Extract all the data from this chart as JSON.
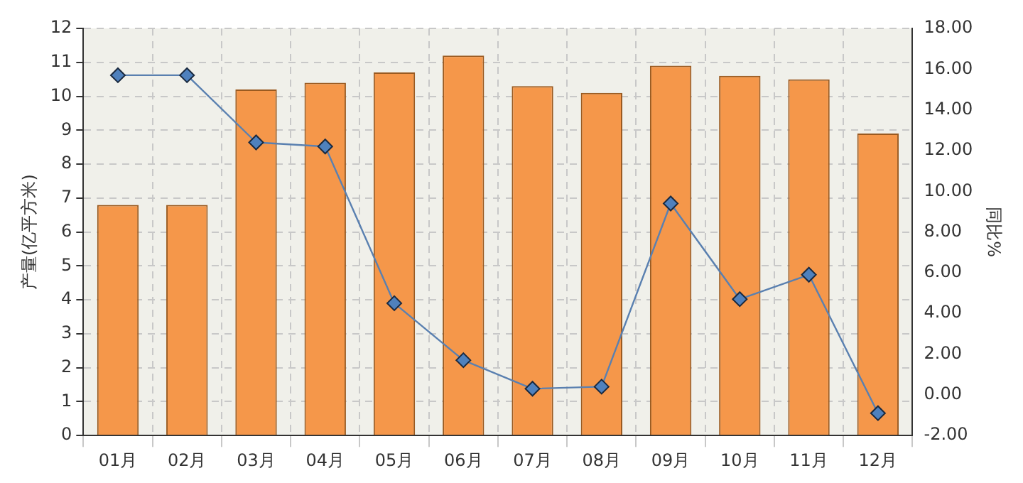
{
  "chart_data": {
    "type": "bar",
    "ylabel": "产量(亿平方米)",
    "y2label": "同比%",
    "categories": [
      "01月",
      "02月",
      "03月",
      "04月",
      "05月",
      "06月",
      "07月",
      "08月",
      "09月",
      "10月",
      "11月",
      "12月"
    ],
    "series": [
      {
        "color": "#f5974a",
        "values": [
          6.8,
          6.8,
          10.2,
          10.4,
          10.7,
          11.2,
          10.3,
          10.1,
          10.9,
          10.6,
          10.5,
          8.9
        ]
      },
      {
        "type": "line",
        "axis": "y2",
        "color": "#5a80b0",
        "marker": "diamond",
        "values": [
          15.7,
          15.7,
          12.4,
          12.2,
          4.5,
          1.7,
          0.3,
          0.4,
          9.4,
          4.7,
          5.9,
          -0.9
        ]
      }
    ],
    "ylim": [
      0,
      12
    ],
    "yticks": [
      0,
      1,
      2,
      3,
      4,
      5,
      6,
      7,
      8,
      9,
      10,
      11,
      12
    ],
    "y2lim": [
      -2,
      18
    ],
    "y2ticks": [
      {
        "value": -2,
        "label": "-2.00"
      },
      {
        "value": 0,
        "label": "0.00"
      },
      {
        "value": 2,
        "label": "2.00"
      },
      {
        "value": 4,
        "label": "4.00"
      },
      {
        "value": 6,
        "label": "6.00"
      },
      {
        "value": 8,
        "label": "8.00"
      },
      {
        "value": 10,
        "label": "10.00"
      },
      {
        "value": 12,
        "label": "12.00"
      },
      {
        "value": 14,
        "label": "14.00"
      },
      {
        "value": 16,
        "label": "16.00"
      },
      {
        "value": 18,
        "label": "18.00"
      }
    ],
    "grid": true,
    "legend": false
  }
}
